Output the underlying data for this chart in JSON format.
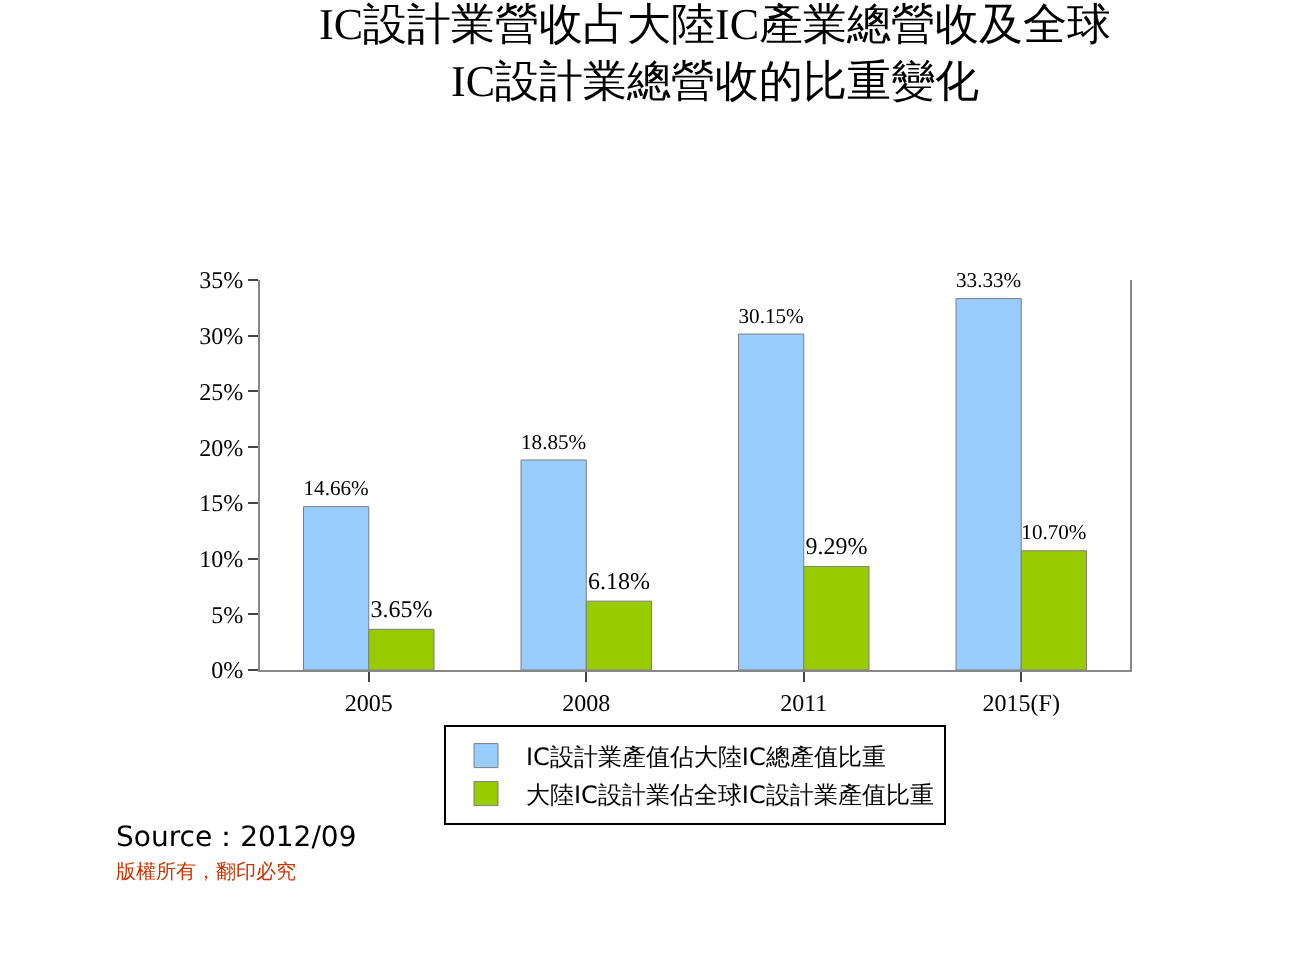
{
  "chart_data": {
    "type": "bar",
    "title": "IC設計業營收占大陸IC產業總營收及全球\nIC設計業總營收的比重變化",
    "categories": [
      "2005",
      "2008",
      "2011",
      "2015(F)"
    ],
    "series": [
      {
        "name": "IC設計業產值佔大陸IC總產值比重",
        "color": "#99ccff",
        "values": [
          14.66,
          18.85,
          30.15,
          33.33
        ],
        "value_labels": [
          "14.66%",
          "18.85%",
          "30.15%",
          "33.33%"
        ]
      },
      {
        "name": "大陸IC設計業佔全球IC設計業產值比重",
        "color": "#99cc00",
        "values": [
          3.65,
          6.18,
          9.29,
          10.7
        ],
        "value_labels": [
          "3.65%",
          "6.18%",
          "9.29%",
          "10.70%"
        ]
      }
    ],
    "ylim": [
      0,
      35
    ],
    "yticks": [
      {
        "value": 0,
        "label": "0%"
      },
      {
        "value": 5,
        "label": "5%"
      },
      {
        "value": 10,
        "label": "10%"
      },
      {
        "value": 15,
        "label": "15%"
      },
      {
        "value": 20,
        "label": "20%"
      },
      {
        "value": 25,
        "label": "25%"
      },
      {
        "value": 30,
        "label": "30%"
      },
      {
        "value": 35,
        "label": "35%"
      }
    ],
    "grid": false,
    "legend": "bottom",
    "annotations": [
      "Source：2012/09",
      "版權所有，翻印必究"
    ]
  }
}
